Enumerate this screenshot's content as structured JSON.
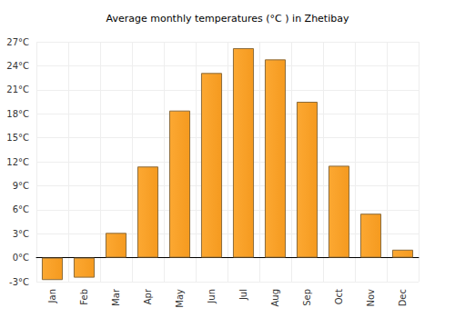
{
  "chart_data": {
    "type": "bar",
    "title": "Average monthly temperatures (°C ) in Zhetibay",
    "categories": [
      "Jan",
      "Feb",
      "Mar",
      "Apr",
      "May",
      "Jun",
      "Jul",
      "Aug",
      "Sep",
      "Oct",
      "Nov",
      "Dec"
    ],
    "values": [
      -2.8,
      -2.5,
      3.1,
      11.4,
      18.4,
      23.1,
      26.2,
      24.8,
      19.5,
      11.5,
      5.5,
      1.0
    ],
    "color": "#fca832",
    "ylim": [
      -3,
      27
    ],
    "yticks": [
      {
        "value": -3,
        "label": "-3°C"
      },
      {
        "value": 0,
        "label": "0°C"
      },
      {
        "value": 3,
        "label": "3°C"
      },
      {
        "value": 6,
        "label": "6°C"
      },
      {
        "value": 9,
        "label": "9°C"
      },
      {
        "value": 12,
        "label": "12°C"
      },
      {
        "value": 15,
        "label": "15°C"
      },
      {
        "value": 18,
        "label": "18°C"
      },
      {
        "value": 21,
        "label": "21°C"
      },
      {
        "value": 24,
        "label": "24°C"
      },
      {
        "value": 27,
        "label": "27°C"
      }
    ],
    "grid": true
  }
}
